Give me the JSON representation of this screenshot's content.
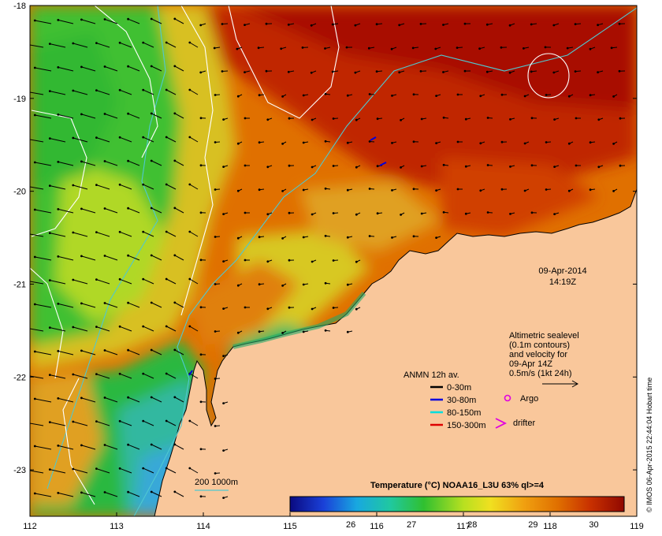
{
  "map": {
    "date": "09-Apr-2014",
    "time": "14:19Z",
    "x_ticks": [
      "112",
      "113",
      "114",
      "115",
      "116",
      "117",
      "118",
      "119"
    ],
    "y_ticks": [
      "-18",
      "-19",
      "-20",
      "-21",
      "-22",
      "-23"
    ],
    "x_range": [
      112,
      119
    ],
    "y_range": [
      -23.5,
      -18
    ],
    "altimetry_note": [
      "Altimetric sealevel",
      "(0.1m contours)",
      "and velocity for",
      "09-Apr 14Z",
      "0.5m/s (1kt 24h)"
    ],
    "anmn_title": "ANMN 12h av.",
    "anmn_legend": [
      {
        "label": "0-30m",
        "color": "#000000"
      },
      {
        "label": "30-80m",
        "color": "#0000dd"
      },
      {
        "label": "80-150m",
        "color": "#00dddd"
      },
      {
        "label": "150-300m",
        "color": "#dd0000"
      }
    ],
    "argo_label": "Argo",
    "drifter_label": "drifter",
    "bathymetry_label": "200  1000m",
    "colorbar_title": "Temperature (°C) NOAA16_L3U 63% ql>=4",
    "colorbar_ticks": [
      "26",
      "27",
      "28",
      "29",
      "30"
    ],
    "colorbar_range": [
      25.0,
      30.5
    ],
    "credit": "© IMOS 06-Apr-2015 22:44:04 Hobart time",
    "colors": {
      "land": "#f9c79b",
      "warm": "#b01500",
      "orange": "#e07000",
      "yellow": "#e8d000",
      "green": "#2fc23a",
      "cyan": "#38c0d8",
      "blue": "#1a5ad8"
    }
  }
}
